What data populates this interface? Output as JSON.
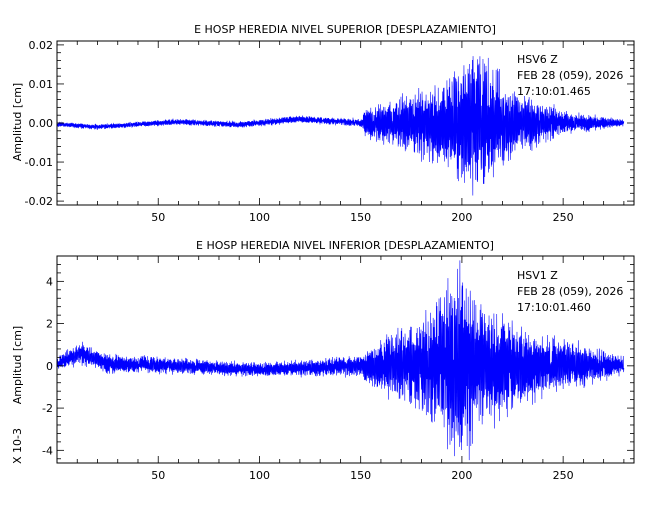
{
  "chart_data": [
    {
      "type": "line",
      "title": "E HOSP HEREDIA NIVEL SUPERIOR [DESPLAZAMIENTO]",
      "ylabel": "Amplitud [cm]",
      "xlabel": "",
      "xlim": [
        0,
        285
      ],
      "ylim": [
        -0.021,
        0.021
      ],
      "xticks": [
        50,
        100,
        150,
        200,
        250
      ],
      "xtick_labels": [
        "50",
        "100",
        "150",
        "200",
        "250"
      ],
      "yticks": [
        -0.02,
        -0.01,
        0.0,
        0.01,
        0.02
      ],
      "ytick_labels": [
        "-0.02",
        "-0.01",
        "0.00",
        "0.01",
        "0.02"
      ],
      "station": "HSV6   Z",
      "date": "FEB 28 (059), 2026",
      "time": "17:10:01.465",
      "line_color": "#0000ff",
      "envelope": [
        {
          "x": 0,
          "amp": 0.0006
        },
        {
          "x": 50,
          "amp": 0.0007
        },
        {
          "x": 100,
          "amp": 0.0008
        },
        {
          "x": 150,
          "amp": 0.001
        },
        {
          "x": 152,
          "amp": 0.003
        },
        {
          "x": 160,
          "amp": 0.0045
        },
        {
          "x": 175,
          "amp": 0.007
        },
        {
          "x": 190,
          "amp": 0.01
        },
        {
          "x": 200,
          "amp": 0.015
        },
        {
          "x": 206,
          "amp": 0.019
        },
        {
          "x": 215,
          "amp": 0.013
        },
        {
          "x": 230,
          "amp": 0.007
        },
        {
          "x": 250,
          "amp": 0.003
        },
        {
          "x": 270,
          "amp": 0.0015
        },
        {
          "x": 280,
          "amp": 0.0008
        }
      ],
      "baseline_drift": [
        {
          "x": 0,
          "y": -0.0003
        },
        {
          "x": 20,
          "y": -0.001
        },
        {
          "x": 60,
          "y": 0.0003
        },
        {
          "x": 90,
          "y": -0.0004
        },
        {
          "x": 120,
          "y": 0.001
        },
        {
          "x": 150,
          "y": 0.0
        },
        {
          "x": 280,
          "y": 0.0
        }
      ]
    },
    {
      "type": "line",
      "title": "E HOSP HEREDIA NIVEL INFERIOR [DESPLAZAMIENTO]",
      "ylabel": "Amplitud [cm]",
      "scale_label": "X 10-3",
      "xlabel": "",
      "xlim": [
        0,
        285
      ],
      "ylim": [
        -4.6,
        5.2
      ],
      "xticks": [
        50,
        100,
        150,
        200,
        250
      ],
      "xtick_labels": [
        "50",
        "100",
        "150",
        "200",
        "250"
      ],
      "yticks": [
        -4,
        -2,
        0,
        2,
        4
      ],
      "ytick_labels": [
        "-4",
        "-2",
        "0",
        "2",
        "4"
      ],
      "station": "HSV1   Z",
      "date": "FEB 28 (059), 2026",
      "time": "17:10:01.460",
      "line_color": "#0000ff",
      "envelope": [
        {
          "x": 0,
          "amp": 0.3
        },
        {
          "x": 12,
          "amp": 0.5
        },
        {
          "x": 30,
          "amp": 0.4
        },
        {
          "x": 100,
          "amp": 0.3
        },
        {
          "x": 150,
          "amp": 0.45
        },
        {
          "x": 153,
          "amp": 0.8
        },
        {
          "x": 175,
          "amp": 1.8
        },
        {
          "x": 190,
          "amp": 3.0
        },
        {
          "x": 197,
          "amp": 4.8
        },
        {
          "x": 205,
          "amp": 3.5
        },
        {
          "x": 220,
          "amp": 2.2
        },
        {
          "x": 240,
          "amp": 1.4
        },
        {
          "x": 260,
          "amp": 0.9
        },
        {
          "x": 280,
          "amp": 0.4
        }
      ],
      "baseline_drift": [
        {
          "x": 0,
          "y": 0.1
        },
        {
          "x": 12,
          "y": 0.6
        },
        {
          "x": 25,
          "y": 0.1
        },
        {
          "x": 60,
          "y": 0.0
        },
        {
          "x": 100,
          "y": -0.2
        },
        {
          "x": 150,
          "y": 0.0
        },
        {
          "x": 280,
          "y": 0.0
        }
      ]
    }
  ]
}
